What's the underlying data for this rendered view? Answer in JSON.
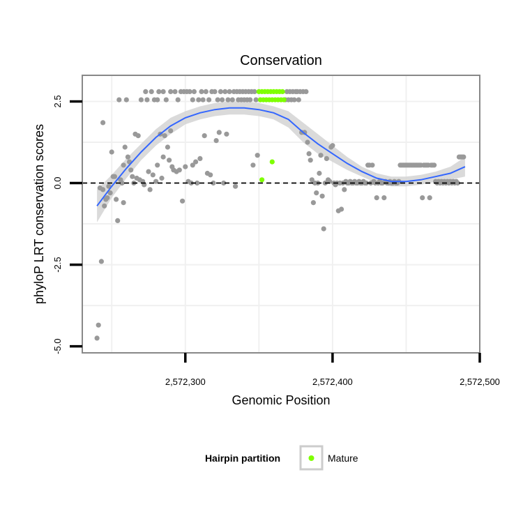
{
  "chart_data": {
    "type": "scatter",
    "title": "Conservation",
    "xlabel": "Genomic Position",
    "ylabel": "phyloP LRT conservation scores",
    "xlim": [
      2572230,
      2572500
    ],
    "ylim": [
      -5.2,
      3.3
    ],
    "x_ticks": [
      2572300,
      2572400,
      2572500
    ],
    "x_tick_labels": [
      "2,572,300",
      "2,572,400",
      "2,572,500"
    ],
    "y_ticks": [
      -5.0,
      -2.5,
      0.0,
      2.5
    ],
    "y_tick_labels": [
      "-5.0",
      "-2.5",
      "0.0",
      "2.5"
    ],
    "grid": true,
    "reference_line": {
      "y": 0.0,
      "style": "dashed",
      "color": "#000000"
    },
    "colors": {
      "other": "#999999",
      "mature": "#7fff00",
      "smooth": "#3366ff",
      "ribbon": "#d3d3d3",
      "panel_border": "#888888",
      "grid": "#f0f0f0"
    },
    "legend": {
      "title": "Hairpin partition",
      "placement": "bottom",
      "entries": [
        {
          "label": "Mature",
          "color": "#7fff00"
        }
      ]
    },
    "series": [
      {
        "group": "other",
        "points": [
          [
            2572240,
            -4.75
          ],
          [
            2572241,
            -4.35
          ],
          [
            2572242,
            -0.15
          ],
          [
            2572243,
            -2.4
          ],
          [
            2572244,
            1.85
          ],
          [
            2572244,
            -0.2
          ],
          [
            2572245,
            -0.7
          ],
          [
            2572246,
            -0.5
          ],
          [
            2572247,
            -0.45
          ],
          [
            2572248,
            -0.1
          ],
          [
            2572249,
            -0.3
          ],
          [
            2572250,
            0.95
          ],
          [
            2572251,
            0.2
          ],
          [
            2572252,
            0.2
          ],
          [
            2572253,
            -0.5
          ],
          [
            2572254,
            -1.15
          ],
          [
            2572255,
            2.55
          ],
          [
            2572256,
            0.1
          ],
          [
            2572257,
            0.0
          ],
          [
            2572258,
            0.55
          ],
          [
            2572258,
            -0.6
          ],
          [
            2572259,
            1.1
          ],
          [
            2572260,
            2.55
          ],
          [
            2572261,
            0.8
          ],
          [
            2572262,
            0.65
          ],
          [
            2572263,
            0.4
          ],
          [
            2572264,
            0.2
          ],
          [
            2572265,
            0.0
          ],
          [
            2572266,
            1.5
          ],
          [
            2572267,
            0.15
          ],
          [
            2572268,
            1.45
          ],
          [
            2572269,
            0.1
          ],
          [
            2572270,
            2.55
          ],
          [
            2572271,
            0.05
          ],
          [
            2572272,
            -0.05
          ],
          [
            2572273,
            2.8
          ],
          [
            2572274,
            2.55
          ],
          [
            2572275,
            0.35
          ],
          [
            2572276,
            -0.2
          ],
          [
            2572277,
            2.8
          ],
          [
            2572278,
            0.25
          ],
          [
            2572279,
            2.55
          ],
          [
            2572280,
            0.05
          ],
          [
            2572281,
            2.55
          ],
          [
            2572281,
            0.55
          ],
          [
            2572282,
            2.8
          ],
          [
            2572283,
            1.5
          ],
          [
            2572284,
            0.15
          ],
          [
            2572285,
            0.8
          ],
          [
            2572285,
            2.8
          ],
          [
            2572286,
            1.45
          ],
          [
            2572287,
            2.55
          ],
          [
            2572288,
            1.1
          ],
          [
            2572289,
            0.7
          ],
          [
            2572290,
            2.8
          ],
          [
            2572290,
            1.6
          ],
          [
            2572291,
            0.5
          ],
          [
            2572292,
            0.4
          ],
          [
            2572293,
            2.8
          ],
          [
            2572294,
            0.35
          ],
          [
            2572295,
            2.55
          ],
          [
            2572296,
            0.4
          ],
          [
            2572297,
            2.8
          ],
          [
            2572298,
            -0.55
          ],
          [
            2572299,
            2.8
          ],
          [
            2572300,
            0.5
          ],
          [
            2572301,
            2.8
          ],
          [
            2572302,
            0.05
          ],
          [
            2572303,
            2.8
          ],
          [
            2572304,
            0.0
          ],
          [
            2572305,
            2.55
          ],
          [
            2572305,
            0.55
          ],
          [
            2572306,
            2.8
          ],
          [
            2572307,
            0.65
          ],
          [
            2572308,
            0.0
          ],
          [
            2572309,
            2.55
          ],
          [
            2572310,
            0.75
          ],
          [
            2572311,
            2.8
          ],
          [
            2572312,
            2.55
          ],
          [
            2572313,
            1.45
          ],
          [
            2572314,
            2.8
          ],
          [
            2572315,
            0.3
          ],
          [
            2572316,
            2.55
          ],
          [
            2572317,
            0.25
          ],
          [
            2572318,
            2.8
          ],
          [
            2572319,
            0.0
          ],
          [
            2572320,
            2.8
          ],
          [
            2572321,
            1.3
          ],
          [
            2572322,
            2.55
          ],
          [
            2572323,
            1.55
          ],
          [
            2572324,
            2.8
          ],
          [
            2572325,
            2.55
          ],
          [
            2572326,
            0.0
          ],
          [
            2572327,
            2.8
          ],
          [
            2572328,
            1.5
          ],
          [
            2572329,
            2.55
          ],
          [
            2572330,
            2.8
          ],
          [
            2572332,
            2.55
          ],
          [
            2572333,
            2.8
          ],
          [
            2572334,
            -0.1
          ],
          [
            2572335,
            2.8
          ],
          [
            2572336,
            2.55
          ],
          [
            2572337,
            2.8
          ],
          [
            2572338,
            2.55
          ],
          [
            2572339,
            2.8
          ],
          [
            2572340,
            2.55
          ],
          [
            2572341,
            2.8
          ],
          [
            2572342,
            2.55
          ],
          [
            2572343,
            2.8
          ],
          [
            2572344,
            2.55
          ],
          [
            2572345,
            2.8
          ],
          [
            2572346,
            0.55
          ],
          [
            2572347,
            2.8
          ],
          [
            2572348,
            2.55
          ],
          [
            2572349,
            0.85
          ],
          [
            2572368,
            2.55
          ],
          [
            2572369,
            2.8
          ],
          [
            2572370,
            2.55
          ],
          [
            2572371,
            2.8
          ],
          [
            2572372,
            2.55
          ],
          [
            2572373,
            2.8
          ],
          [
            2572374,
            2.55
          ],
          [
            2572375,
            2.8
          ],
          [
            2572376,
            2.8
          ],
          [
            2572377,
            2.55
          ],
          [
            2572378,
            2.8
          ],
          [
            2572379,
            1.55
          ],
          [
            2572380,
            2.8
          ],
          [
            2572381,
            1.55
          ],
          [
            2572382,
            2.8
          ],
          [
            2572383,
            1.25
          ],
          [
            2572384,
            0.9
          ],
          [
            2572385,
            0.7
          ],
          [
            2572386,
            0.1
          ],
          [
            2572387,
            -0.6
          ],
          [
            2572388,
            0.0
          ],
          [
            2572389,
            -0.3
          ],
          [
            2572390,
            0.0
          ],
          [
            2572391,
            0.3
          ],
          [
            2572392,
            0.85
          ],
          [
            2572393,
            -0.4
          ],
          [
            2572394,
            -1.4
          ],
          [
            2572395,
            0.0
          ],
          [
            2572396,
            0.75
          ],
          [
            2572397,
            0.1
          ],
          [
            2572398,
            0.05
          ],
          [
            2572399,
            1.1
          ],
          [
            2572400,
            1.15
          ],
          [
            2572401,
            0.0
          ],
          [
            2572402,
            -0.05
          ],
          [
            2572403,
            0.0
          ],
          [
            2572404,
            -0.85
          ],
          [
            2572405,
            0.0
          ],
          [
            2572406,
            -0.8
          ],
          [
            2572407,
            0.0
          ],
          [
            2572408,
            -0.2
          ],
          [
            2572409,
            0.05
          ],
          [
            2572410,
            0.0
          ],
          [
            2572411,
            0.0
          ],
          [
            2572412,
            0.05
          ],
          [
            2572413,
            0.0
          ],
          [
            2572414,
            0.0
          ],
          [
            2572415,
            0.05
          ],
          [
            2572416,
            0.0
          ],
          [
            2572417,
            0.0
          ],
          [
            2572418,
            0.05
          ],
          [
            2572419,
            0.0
          ],
          [
            2572420,
            0.0
          ],
          [
            2572421,
            0.05
          ],
          [
            2572422,
            0.0
          ],
          [
            2572423,
            0.0
          ],
          [
            2572424,
            0.55
          ],
          [
            2572425,
            0.55
          ],
          [
            2572426,
            0.0
          ],
          [
            2572427,
            0.55
          ],
          [
            2572428,
            0.05
          ],
          [
            2572429,
            0.0
          ],
          [
            2572430,
            -0.45
          ],
          [
            2572431,
            0.0
          ],
          [
            2572432,
            0.05
          ],
          [
            2572433,
            0.0
          ],
          [
            2572434,
            0.0
          ],
          [
            2572435,
            -0.45
          ],
          [
            2572436,
            0.05
          ],
          [
            2572437,
            0.0
          ],
          [
            2572438,
            0.0
          ],
          [
            2572439,
            0.05
          ],
          [
            2572440,
            0.0
          ],
          [
            2572441,
            0.0
          ],
          [
            2572442,
            0.05
          ],
          [
            2572443,
            0.0
          ],
          [
            2572444,
            0.0
          ],
          [
            2572445,
            0.05
          ],
          [
            2572446,
            0.55
          ],
          [
            2572447,
            0.55
          ],
          [
            2572448,
            0.55
          ],
          [
            2572449,
            0.55
          ],
          [
            2572450,
            0.55
          ],
          [
            2572451,
            0.55
          ],
          [
            2572452,
            0.55
          ],
          [
            2572453,
            0.55
          ],
          [
            2572454,
            0.55
          ],
          [
            2572455,
            0.55
          ],
          [
            2572456,
            0.55
          ],
          [
            2572457,
            0.55
          ],
          [
            2572458,
            0.55
          ],
          [
            2572459,
            0.55
          ],
          [
            2572460,
            0.55
          ],
          [
            2572461,
            -0.45
          ],
          [
            2572462,
            0.55
          ],
          [
            2572463,
            0.55
          ],
          [
            2572464,
            0.55
          ],
          [
            2572465,
            0.55
          ],
          [
            2572466,
            -0.45
          ],
          [
            2572467,
            0.55
          ],
          [
            2572468,
            0.55
          ],
          [
            2572469,
            0.55
          ],
          [
            2572470,
            0.05
          ],
          [
            2572471,
            0.0
          ],
          [
            2572472,
            0.05
          ],
          [
            2572473,
            0.0
          ],
          [
            2572474,
            0.05
          ],
          [
            2572475,
            0.0
          ],
          [
            2572476,
            0.05
          ],
          [
            2572477,
            0.0
          ],
          [
            2572478,
            0.05
          ],
          [
            2572479,
            0.0
          ],
          [
            2572480,
            0.05
          ],
          [
            2572481,
            0.0
          ],
          [
            2572482,
            0.05
          ],
          [
            2572483,
            0.0
          ],
          [
            2572484,
            0.05
          ],
          [
            2572485,
            0.0
          ],
          [
            2572486,
            0.8
          ],
          [
            2572487,
            0.8
          ],
          [
            2572488,
            0.8
          ],
          [
            2572489,
            0.8
          ]
        ]
      },
      {
        "name": "Mature",
        "group": "mature",
        "points": [
          [
            2572350,
            2.8
          ],
          [
            2572351,
            2.55
          ],
          [
            2572352,
            0.1
          ],
          [
            2572352,
            2.8
          ],
          [
            2572353,
            2.55
          ],
          [
            2572354,
            2.8
          ],
          [
            2572355,
            2.55
          ],
          [
            2572356,
            2.8
          ],
          [
            2572357,
            2.55
          ],
          [
            2572358,
            2.8
          ],
          [
            2572359,
            0.65
          ],
          [
            2572359,
            2.55
          ],
          [
            2572360,
            2.8
          ],
          [
            2572361,
            2.55
          ],
          [
            2572362,
            2.8
          ],
          [
            2572363,
            2.55
          ],
          [
            2572364,
            2.8
          ],
          [
            2572365,
            2.55
          ],
          [
            2572366,
            2.8
          ],
          [
            2572367,
            2.55
          ]
        ]
      }
    ],
    "smooth": {
      "method": "loess",
      "x": [
        2572240,
        2572250,
        2572260,
        2572270,
        2572280,
        2572290,
        2572300,
        2572310,
        2572320,
        2572330,
        2572340,
        2572350,
        2572360,
        2572370,
        2572380,
        2572390,
        2572400,
        2572410,
        2572420,
        2572430,
        2572440,
        2572450,
        2572460,
        2572470,
        2572480,
        2572490
      ],
      "y": [
        -0.7,
        -0.1,
        0.45,
        0.95,
        1.4,
        1.75,
        2.0,
        2.15,
        2.25,
        2.3,
        2.3,
        2.25,
        2.15,
        1.95,
        1.55,
        1.2,
        0.9,
        0.6,
        0.35,
        0.15,
        0.05,
        0.05,
        0.1,
        0.2,
        0.3,
        0.5
      ],
      "lower": [
        -1.2,
        -0.45,
        0.15,
        0.7,
        1.15,
        1.5,
        1.8,
        1.95,
        2.05,
        2.1,
        2.1,
        2.05,
        1.95,
        1.7,
        1.25,
        0.9,
        0.65,
        0.4,
        0.2,
        0.0,
        -0.1,
        -0.1,
        -0.05,
        0.05,
        0.1,
        0.2
      ],
      "upper": [
        -0.2,
        0.25,
        0.75,
        1.2,
        1.65,
        2.0,
        2.2,
        2.35,
        2.45,
        2.5,
        2.5,
        2.45,
        2.35,
        2.2,
        1.85,
        1.5,
        1.15,
        0.8,
        0.5,
        0.3,
        0.2,
        0.2,
        0.25,
        0.35,
        0.5,
        0.8
      ]
    }
  }
}
